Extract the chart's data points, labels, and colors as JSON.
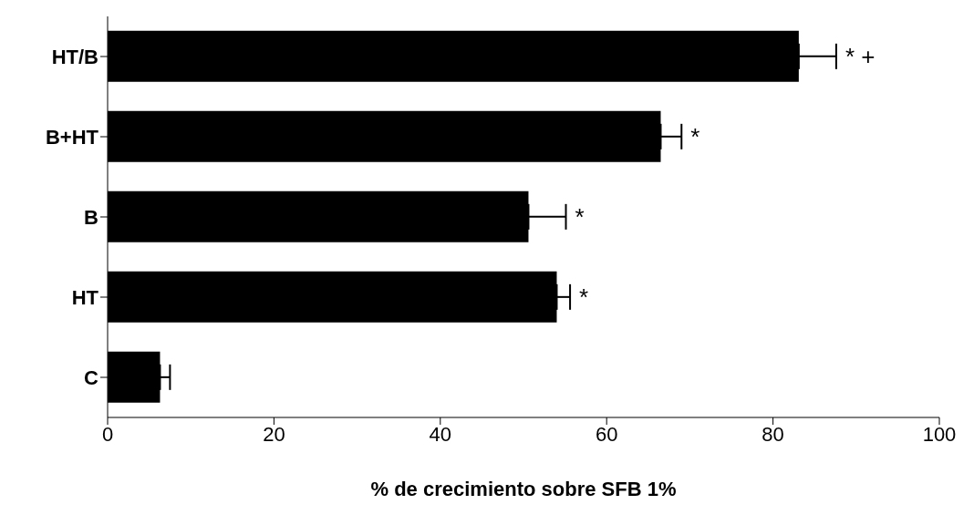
{
  "chart_data": {
    "type": "bar",
    "orientation": "horizontal",
    "xlabel": "% de crecimiento sobre SFB 1%",
    "categories": [
      "HT/B",
      "B+HT",
      "B",
      "HT",
      "C"
    ],
    "values": [
      83.1,
      66.5,
      50.6,
      54,
      6.3
    ],
    "errors": [
      [
        83.1,
        87.6
      ],
      [
        66.5,
        69
      ],
      [
        50.6,
        55.1
      ],
      [
        54,
        55.6
      ],
      [
        6.3,
        7.5
      ]
    ],
    "color": "#000000",
    "xlim": [
      0,
      100
    ],
    "xticks": [
      0,
      20,
      40,
      60,
      80,
      100
    ],
    "grid": false,
    "legend": false,
    "annotations": [
      {
        "text": "* +",
        "x": 87.6,
        "y": "HT/B"
      },
      {
        "text": "*",
        "x": 69,
        "y": "B+HT"
      },
      {
        "text": "*",
        "x": 55.1,
        "y": "B"
      },
      {
        "text": "*",
        "x": 55.6,
        "y": "HT"
      }
    ]
  }
}
